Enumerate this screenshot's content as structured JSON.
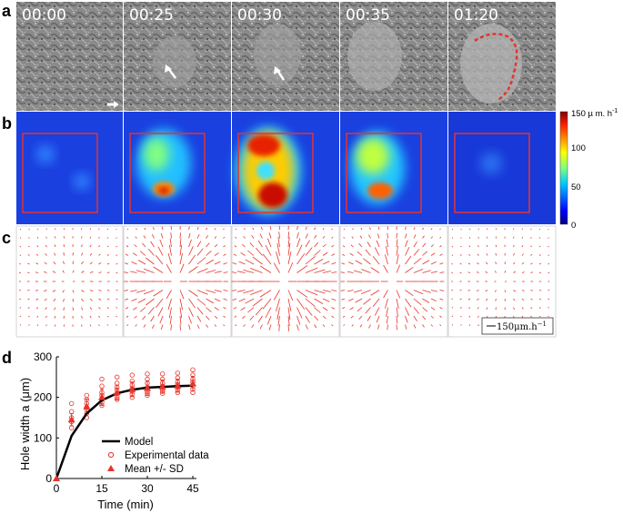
{
  "panels": {
    "a": "a",
    "b": "b",
    "c": "c",
    "d": "d"
  },
  "timepoints": [
    "00:00",
    "00:25",
    "00:30",
    "00:35",
    "01:20"
  ],
  "colorbar": {
    "unit_label": "150 µ m. h",
    "unit_exp": "-1",
    "ticks": [
      "100",
      "50",
      "0"
    ],
    "range": [
      0,
      150
    ]
  },
  "scale_bar": {
    "label": "150μm.h",
    "exp": "−1"
  },
  "colors": {
    "data": "#e8332a",
    "model": "#000000",
    "roi": "#e8332a"
  },
  "chart_data": {
    "type": "line",
    "xlabel": "Time (min)",
    "ylabel": "Hole width a (μm)",
    "xlim": [
      0,
      45
    ],
    "ylim": [
      0,
      300
    ],
    "xticks": [
      0,
      15,
      30,
      45
    ],
    "yticks": [
      0,
      100,
      200,
      300
    ],
    "grid": false,
    "legend_position": "center-right",
    "series": [
      {
        "name": "Model",
        "style": "line",
        "x": [
          0,
          5,
          10,
          15,
          20,
          25,
          30,
          35,
          40,
          45
        ],
        "y": [
          0,
          105,
          160,
          193,
          210,
          219,
          224,
          226,
          228,
          229
        ]
      },
      {
        "name": "Experimental data",
        "style": "open-circle",
        "x": [
          5,
          5,
          5,
          5,
          5,
          10,
          10,
          10,
          10,
          10,
          10,
          10,
          15,
          15,
          15,
          15,
          15,
          15,
          15,
          20,
          20,
          20,
          20,
          20,
          20,
          20,
          25,
          25,
          25,
          25,
          25,
          25,
          25,
          30,
          30,
          30,
          30,
          30,
          30,
          30,
          35,
          35,
          35,
          35,
          35,
          35,
          35,
          40,
          40,
          40,
          40,
          40,
          40,
          40,
          45,
          45,
          45,
          45,
          45,
          45,
          45
        ],
        "y": [
          185,
          165,
          150,
          140,
          125,
          205,
          195,
          185,
          175,
          170,
          160,
          150,
          245,
          228,
          212,
          205,
          195,
          188,
          180,
          250,
          235,
          225,
          218,
          210,
          200,
          195,
          255,
          240,
          230,
          222,
          215,
          208,
          200,
          258,
          245,
          235,
          225,
          215,
          210,
          205,
          258,
          245,
          235,
          228,
          220,
          215,
          210,
          260,
          248,
          238,
          232,
          225,
          218,
          212,
          268,
          255,
          245,
          238,
          228,
          220,
          212
        ]
      },
      {
        "name": "Mean +/- SD",
        "style": "triangle-errorbar",
        "x": [
          0,
          5,
          10,
          15,
          20,
          25,
          30,
          35,
          40,
          45
        ],
        "y": [
          0,
          145,
          178,
          200,
          212,
          220,
          223,
          227,
          229,
          234
        ],
        "sd": [
          0,
          15,
          18,
          20,
          18,
          18,
          18,
          16,
          16,
          18
        ]
      }
    ]
  }
}
